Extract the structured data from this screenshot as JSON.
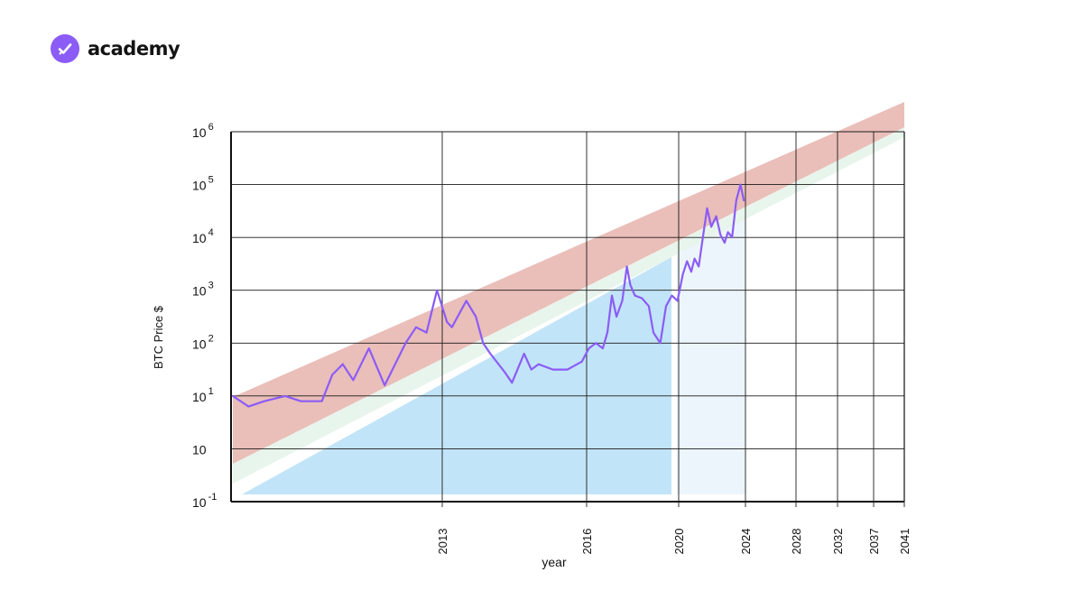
{
  "brand": {
    "name": "academy",
    "accent": "#8b5cf6"
  },
  "chart_data": {
    "type": "line",
    "title": "",
    "xlabel": "year",
    "ylabel": "BTC Price $",
    "y_scale": "log",
    "y_range_exponent": [
      -1,
      6
    ],
    "grid": true,
    "y_ticks": [
      {
        "base": "10",
        "sup": "6"
      },
      {
        "base": "10",
        "sup": "5"
      },
      {
        "base": "10",
        "sup": "4"
      },
      {
        "base": "10",
        "sup": "3"
      },
      {
        "base": "10",
        "sup": "2"
      },
      {
        "base": "10",
        "sup": "1"
      },
      {
        "base": "10",
        "sup": ""
      },
      {
        "base": "10",
        "sup": "-1"
      }
    ],
    "x_ticks": [
      "2013",
      "2016",
      "2020",
      "2024",
      "2028",
      "2032",
      "2037",
      "2041"
    ],
    "colors": {
      "price_line": "#8b5cf6",
      "upper_band": "#e6b3ad",
      "lower_band": "#e6f4ea",
      "support_area": "#c2e4f8",
      "support_projection": "#edf5fc"
    },
    "series": [
      {
        "type": "line",
        "points": [
          [
            "2009.0",
            1.0
          ],
          [
            "2009.3",
            0.8
          ],
          [
            "2009.6",
            0.9
          ],
          [
            "2010.0",
            1.0
          ],
          [
            "2010.3",
            0.9
          ],
          [
            "2010.7",
            0.9
          ],
          [
            "2010.9",
            1.4
          ],
          [
            "2011.1",
            1.6
          ],
          [
            "2011.3",
            1.3
          ],
          [
            "2011.6",
            1.9
          ],
          [
            "2011.9",
            1.2
          ],
          [
            "2012.3",
            2.0
          ],
          [
            "2012.5",
            2.3
          ],
          [
            "2012.7",
            2.2
          ],
          [
            "2012.9",
            3.0
          ],
          [
            "2013.1",
            2.4
          ],
          [
            "2013.2",
            2.3
          ],
          [
            "2013.5",
            2.8
          ],
          [
            "2013.7",
            2.5
          ],
          [
            "2013.85",
            2.0
          ],
          [
            "2014.0",
            1.8
          ],
          [
            "2014.3",
            1.45
          ],
          [
            "2014.45",
            1.25
          ],
          [
            "2014.7",
            1.8
          ],
          [
            "2014.85",
            1.5
          ],
          [
            "2015.0",
            1.6
          ],
          [
            "2015.3",
            1.5
          ],
          [
            "2015.6",
            1.5
          ],
          [
            "2015.9",
            1.65
          ],
          [
            "2016.1",
            1.9
          ],
          [
            "2016.4",
            2.0
          ],
          [
            "2016.7",
            1.9
          ],
          [
            "2016.9",
            2.2
          ],
          [
            "2017.1",
            2.9
          ],
          [
            "2017.3",
            2.5
          ],
          [
            "2017.55",
            2.8
          ],
          [
            "2017.75",
            3.45
          ],
          [
            "2017.9",
            3.1
          ],
          [
            "2018.1",
            2.9
          ],
          [
            "2018.4",
            2.85
          ],
          [
            "2018.7",
            2.7
          ],
          [
            "2018.9",
            2.2
          ],
          [
            "2019.2",
            2.0
          ],
          [
            "2019.45",
            2.7
          ],
          [
            "2019.7",
            2.9
          ],
          [
            "2019.95",
            2.8
          ],
          [
            "2020.25",
            3.3
          ],
          [
            "2020.5",
            3.55
          ],
          [
            "2020.75",
            3.35
          ],
          [
            "2020.95",
            3.6
          ],
          [
            "2021.2",
            3.45
          ],
          [
            "2021.45",
            4.0
          ],
          [
            "2021.7",
            4.55
          ],
          [
            "2021.95",
            4.2
          ],
          [
            "2022.25",
            4.4
          ],
          [
            "2022.5",
            4.05
          ],
          [
            "2022.75",
            3.9
          ],
          [
            "2022.95",
            4.1
          ],
          [
            "2023.2",
            4.0
          ],
          [
            "2023.45",
            4.7
          ],
          [
            "2023.7",
            5.0
          ],
          [
            "2023.9",
            4.7
          ]
        ]
      }
    ]
  }
}
